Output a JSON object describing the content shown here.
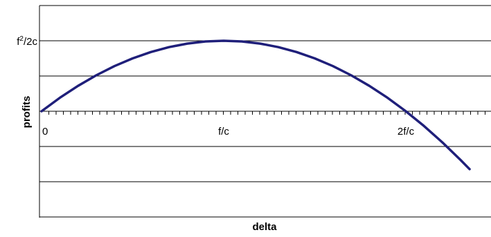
{
  "chart_data": {
    "type": "line",
    "title": "",
    "xlabel": "delta",
    "ylabel": "profits",
    "x_ticks": [
      {
        "x": 0,
        "label": "0"
      },
      {
        "x": 1,
        "label": "f/c"
      },
      {
        "x": 2,
        "label": "2f/c"
      }
    ],
    "y_ticks": [
      {
        "y": 0.5,
        "label": "f",
        "sup": "2",
        "rest": "/2c"
      }
    ],
    "xlim": [
      0,
      2.35
    ],
    "ylim": [
      -1,
      1
    ],
    "grid": true,
    "series": [
      {
        "color": "#1f1f7a",
        "x": [
          0,
          0.1,
          0.2,
          0.3,
          0.4,
          0.5,
          0.6,
          0.7,
          0.8,
          0.9,
          1.0,
          1.1,
          1.2,
          1.3,
          1.4,
          1.5,
          1.6,
          1.7,
          1.8,
          1.9,
          2.0,
          2.1,
          2.2,
          2.3,
          2.35
        ],
        "y": [
          0,
          0.095,
          0.18,
          0.255,
          0.32,
          0.375,
          0.42,
          0.455,
          0.48,
          0.495,
          0.5,
          0.495,
          0.48,
          0.455,
          0.42,
          0.375,
          0.32,
          0.255,
          0.18,
          0.095,
          0,
          -0.105,
          -0.22,
          -0.345,
          -0.411
        ]
      }
    ]
  }
}
